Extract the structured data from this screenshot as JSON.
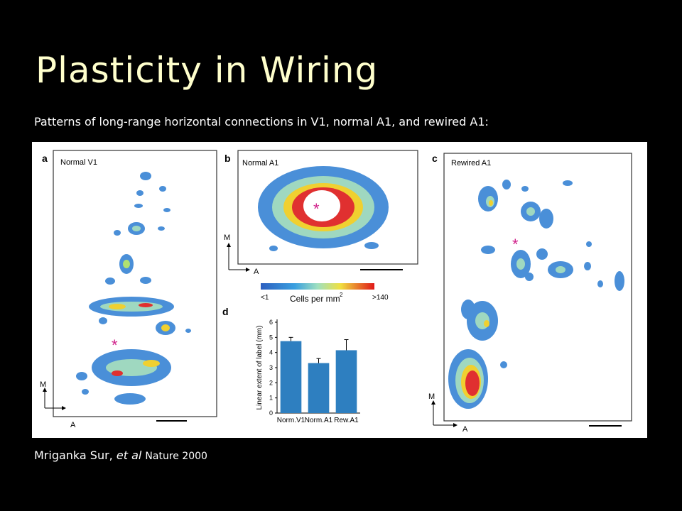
{
  "slide": {
    "title": "Plasticity in Wiring",
    "subtitle": "Patterns of long-range horizontal connections in V1, normal A1, and rewired A1:",
    "citation_author": "Mriganka Sur, ",
    "citation_etal": "et al",
    "citation_journal": "Nature 2000"
  },
  "panels": {
    "a": {
      "letter": "a",
      "title": "Normal V1",
      "axis_m": "M",
      "axis_a": "A"
    },
    "b": {
      "letter": "b",
      "title": "Normal A1",
      "axis_m": "M",
      "axis_a": "A"
    },
    "c": {
      "letter": "c",
      "title": "Rewired A1",
      "axis_m": "M",
      "axis_a": "A"
    },
    "d": {
      "letter": "d"
    }
  },
  "colorbar": {
    "min_label": "<1",
    "max_label": ">140",
    "label": "Cells per mm",
    "label_sup": "2"
  },
  "chart_data": {
    "type": "bar",
    "categories": [
      "Norm.V1",
      "Norm.A1",
      "Rew.A1"
    ],
    "values": [
      4.75,
      3.3,
      4.15
    ],
    "errors": [
      0.25,
      0.3,
      0.7
    ],
    "ylabel": "Linear extent of label (mm)",
    "yticks": [
      0,
      1,
      2,
      3,
      4,
      5,
      6
    ],
    "ylim": [
      0,
      6
    ],
    "bar_color": "#2e7fc0"
  },
  "colors": {
    "blue": "#3a7fd0",
    "cyan": "#7fd8e8",
    "green": "#9fd060",
    "yellow": "#f2e040",
    "red": "#e02020",
    "magenta": "#d0208a"
  }
}
